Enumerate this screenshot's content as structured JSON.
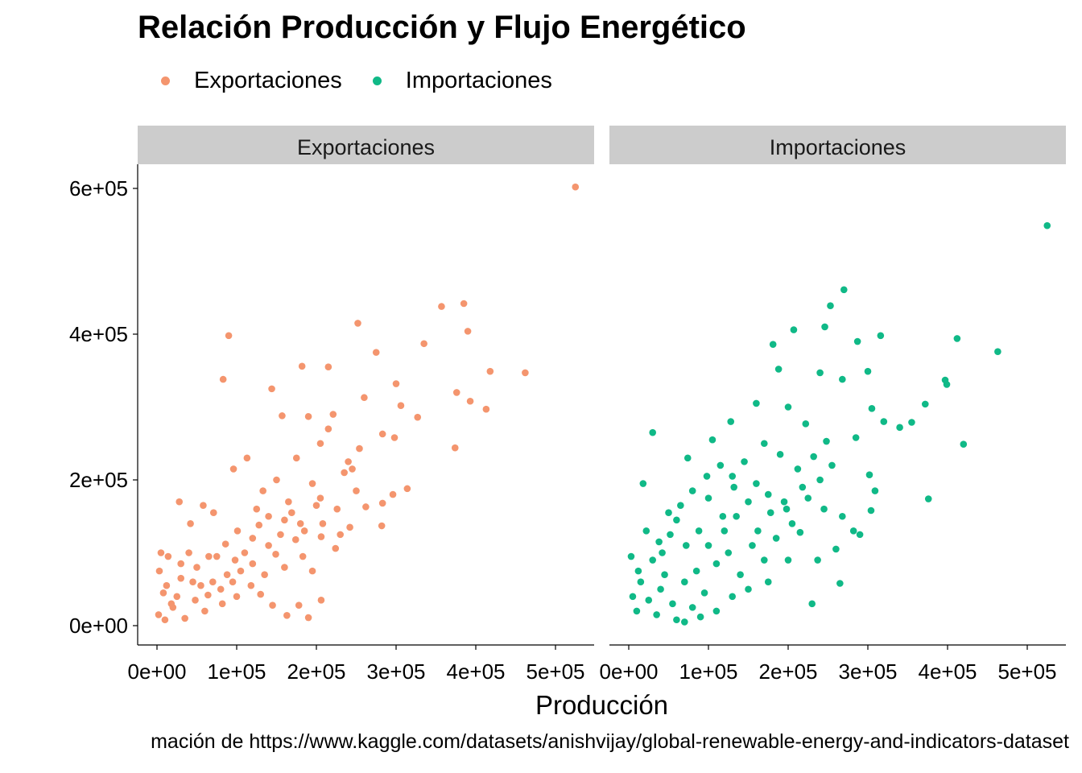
{
  "title": "Relación Producción y Flujo Energético",
  "caption": "mación de https://www.kaggle.com/datasets/anishvijay/global-renewable-energy-and-indicators-dataset",
  "colors": {
    "Exportaciones": "#F4956E",
    "Importaciones": "#10B987",
    "strip": "#CCCCCC"
  },
  "chart_data": {
    "type": "scatter",
    "title": "Relación Producción y Flujo Energético",
    "xlabel": "Producción",
    "ylabel": "",
    "xlim": [
      -25000,
      540000
    ],
    "ylim": [
      -25000,
      635000
    ],
    "x_ticks": [
      0,
      100000,
      200000,
      300000,
      400000,
      500000
    ],
    "x_tick_labels": [
      "0e+00",
      "1e+05",
      "2e+05",
      "3e+05",
      "4e+05",
      "5e+05"
    ],
    "y_ticks": [
      0,
      200000,
      400000,
      600000
    ],
    "y_tick_labels": [
      "0e+00",
      "2e+05",
      "4e+05",
      "6e+05"
    ],
    "legend": {
      "position": "top-left",
      "entries": [
        "Exportaciones",
        "Importaciones"
      ]
    },
    "grid": false,
    "facets": [
      "Exportaciones",
      "Importaciones"
    ],
    "series": [
      {
        "name": "Exportaciones",
        "facet": "Exportaciones",
        "color": "#F4956E",
        "points": [
          [
            525000,
            602000
          ],
          [
            385000,
            442000
          ],
          [
            357000,
            438000
          ],
          [
            390000,
            404000
          ],
          [
            252000,
            415000
          ],
          [
            90000,
            398000
          ],
          [
            275000,
            375000
          ],
          [
            335000,
            387000
          ],
          [
            418000,
            349000
          ],
          [
            462000,
            347000
          ],
          [
            83000,
            338000
          ],
          [
            376000,
            320000
          ],
          [
            393000,
            308000
          ],
          [
            413000,
            297000
          ],
          [
            374000,
            244000
          ],
          [
            300000,
            332000
          ],
          [
            182000,
            356000
          ],
          [
            215000,
            355000
          ],
          [
            144000,
            325000
          ],
          [
            306000,
            302000
          ],
          [
            327000,
            286000
          ],
          [
            260000,
            313000
          ],
          [
            221000,
            290000
          ],
          [
            190000,
            287000
          ],
          [
            157000,
            288000
          ],
          [
            298000,
            258000
          ],
          [
            283000,
            263000
          ],
          [
            254000,
            243000
          ],
          [
            240000,
            225000
          ],
          [
            296000,
            180000
          ],
          [
            314000,
            188000
          ],
          [
            283000,
            168000
          ],
          [
            262000,
            163000
          ],
          [
            282000,
            137000
          ],
          [
            224000,
            106000
          ],
          [
            195000,
            75000
          ],
          [
            130000,
            43000
          ],
          [
            163000,
            14000
          ],
          [
            190000,
            11000
          ],
          [
            206000,
            35000
          ],
          [
            178000,
            28000
          ],
          [
            145000,
            28000
          ],
          [
            96000,
            215000
          ],
          [
            113000,
            230000
          ],
          [
            133000,
            185000
          ],
          [
            242000,
            135000
          ],
          [
            226000,
            160000
          ],
          [
            205000,
            175000
          ],
          [
            208000,
            140000
          ],
          [
            169000,
            155000
          ],
          [
            155000,
            125000
          ],
          [
            128000,
            138000
          ],
          [
            174000,
            118000
          ],
          [
            206000,
            122000
          ],
          [
            183000,
            95000
          ],
          [
            149000,
            98000
          ],
          [
            120000,
            85000
          ],
          [
            101000,
            130000
          ],
          [
            86000,
            112000
          ],
          [
            71000,
            155000
          ],
          [
            58000,
            165000
          ],
          [
            42000,
            140000
          ],
          [
            28000,
            170000
          ],
          [
            40000,
            100000
          ],
          [
            14000,
            95000
          ],
          [
            5000,
            100000
          ],
          [
            3000,
            75000
          ],
          [
            12000,
            55000
          ],
          [
            30000,
            65000
          ],
          [
            50000,
            80000
          ],
          [
            70000,
            60000
          ],
          [
            88000,
            70000
          ],
          [
            25000,
            40000
          ],
          [
            48000,
            35000
          ],
          [
            64000,
            42000
          ],
          [
            82000,
            30000
          ],
          [
            100000,
            40000
          ],
          [
            118000,
            55000
          ],
          [
            135000,
            70000
          ],
          [
            98000,
            90000
          ],
          [
            60000,
            20000
          ],
          [
            35000,
            10000
          ],
          [
            10000,
            8000
          ],
          [
            20000,
            25000
          ],
          [
            55000,
            55000
          ],
          [
            75000,
            95000
          ],
          [
            95000,
            60000
          ],
          [
            110000,
            100000
          ],
          [
            140000,
            110000
          ],
          [
            160000,
            80000
          ],
          [
            180000,
            140000
          ],
          [
            230000,
            125000
          ],
          [
            250000,
            185000
          ],
          [
            235000,
            210000
          ],
          [
            195000,
            195000
          ],
          [
            165000,
            170000
          ],
          [
            125000,
            160000
          ],
          [
            150000,
            200000
          ],
          [
            175000,
            230000
          ],
          [
            205000,
            250000
          ],
          [
            215000,
            270000
          ],
          [
            245000,
            215000
          ],
          [
            200000,
            165000
          ],
          [
            185000,
            130000
          ],
          [
            160000,
            145000
          ],
          [
            140000,
            150000
          ],
          [
            120000,
            120000
          ],
          [
            105000,
            75000
          ],
          [
            80000,
            50000
          ],
          [
            65000,
            95000
          ],
          [
            45000,
            60000
          ],
          [
            30000,
            85000
          ],
          [
            18000,
            30000
          ],
          [
            8000,
            45000
          ],
          [
            2000,
            15000
          ]
        ]
      },
      {
        "name": "Importaciones",
        "facet": "Importaciones",
        "color": "#10B987",
        "points": [
          [
            525000,
            549000
          ],
          [
            270000,
            461000
          ],
          [
            253000,
            439000
          ],
          [
            316000,
            398000
          ],
          [
            412000,
            394000
          ],
          [
            463000,
            376000
          ],
          [
            246000,
            410000
          ],
          [
            207000,
            406000
          ],
          [
            181000,
            386000
          ],
          [
            287000,
            390000
          ],
          [
            268000,
            338000
          ],
          [
            240000,
            347000
          ],
          [
            300000,
            349000
          ],
          [
            397000,
            337000
          ],
          [
            399000,
            331000
          ],
          [
            372000,
            304000
          ],
          [
            305000,
            298000
          ],
          [
            320000,
            280000
          ],
          [
            355000,
            279000
          ],
          [
            340000,
            272000
          ],
          [
            420000,
            249000
          ],
          [
            376000,
            174000
          ],
          [
            290000,
            125000
          ],
          [
            265000,
            58000
          ],
          [
            230000,
            30000
          ],
          [
            30000,
            265000
          ],
          [
            18000,
            195000
          ],
          [
            50000,
            155000
          ],
          [
            42000,
            100000
          ],
          [
            74000,
            230000
          ],
          [
            105000,
            255000
          ],
          [
            128000,
            280000
          ],
          [
            160000,
            305000
          ],
          [
            188000,
            352000
          ],
          [
            200000,
            300000
          ],
          [
            222000,
            277000
          ],
          [
            248000,
            253000
          ],
          [
            285000,
            258000
          ],
          [
            302000,
            207000
          ],
          [
            309000,
            185000
          ],
          [
            304000,
            158000
          ],
          [
            282000,
            130000
          ],
          [
            260000,
            105000
          ],
          [
            237000,
            90000
          ],
          [
            215000,
            128000
          ],
          [
            195000,
            170000
          ],
          [
            178000,
            155000
          ],
          [
            162000,
            130000
          ],
          [
            150000,
            170000
          ],
          [
            132000,
            190000
          ],
          [
            118000,
            150000
          ],
          [
            100000,
            175000
          ],
          [
            88000,
            130000
          ],
          [
            72000,
            110000
          ],
          [
            60000,
            145000
          ],
          [
            45000,
            70000
          ],
          [
            30000,
            90000
          ],
          [
            15000,
            60000
          ],
          [
            5000,
            40000
          ],
          [
            3000,
            95000
          ],
          [
            10000,
            20000
          ],
          [
            25000,
            35000
          ],
          [
            40000,
            50000
          ],
          [
            55000,
            30000
          ],
          [
            70000,
            60000
          ],
          [
            85000,
            75000
          ],
          [
            95000,
            45000
          ],
          [
            110000,
            85000
          ],
          [
            125000,
            100000
          ],
          [
            140000,
            70000
          ],
          [
            155000,
            110000
          ],
          [
            170000,
            90000
          ],
          [
            185000,
            120000
          ],
          [
            205000,
            140000
          ],
          [
            225000,
            175000
          ],
          [
            240000,
            200000
          ],
          [
            255000,
            220000
          ],
          [
            232000,
            232000
          ],
          [
            212000,
            215000
          ],
          [
            190000,
            235000
          ],
          [
            170000,
            250000
          ],
          [
            145000,
            225000
          ],
          [
            130000,
            205000
          ],
          [
            115000,
            220000
          ],
          [
            98000,
            205000
          ],
          [
            80000,
            185000
          ],
          [
            65000,
            165000
          ],
          [
            52000,
            125000
          ],
          [
            38000,
            115000
          ],
          [
            22000,
            130000
          ],
          [
            12000,
            75000
          ],
          [
            35000,
            15000
          ],
          [
            60000,
            8000
          ],
          [
            80000,
            25000
          ],
          [
            100000,
            110000
          ],
          [
            120000,
            130000
          ],
          [
            135000,
            150000
          ],
          [
            160000,
            195000
          ],
          [
            175000,
            180000
          ],
          [
            198000,
            160000
          ],
          [
            218000,
            190000
          ],
          [
            245000,
            160000
          ],
          [
            268000,
            150000
          ],
          [
            200000,
            90000
          ],
          [
            175000,
            60000
          ],
          [
            150000,
            50000
          ],
          [
            130000,
            40000
          ],
          [
            110000,
            20000
          ],
          [
            90000,
            12000
          ],
          [
            70000,
            5000
          ]
        ]
      }
    ]
  }
}
